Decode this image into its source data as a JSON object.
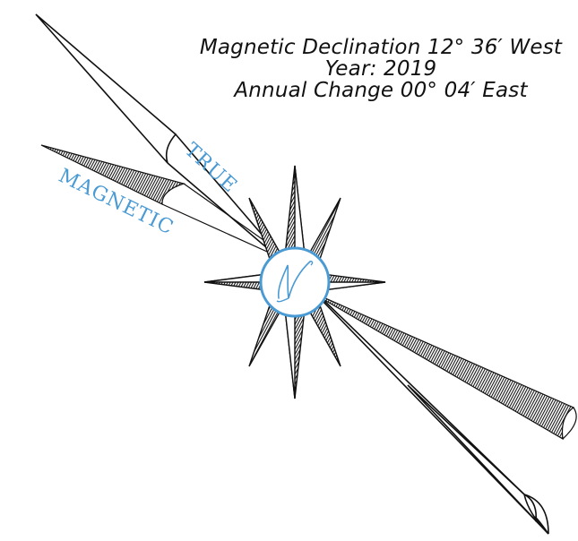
{
  "info": {
    "line1": "Magnetic Declination 12° 36′ West",
    "line2": "Year: 2019",
    "line3": "Annual Change 00° 04′ East"
  },
  "labels": {
    "true": "TRUE",
    "magnetic": "MAGNETIC",
    "north": "N"
  },
  "colors": {
    "ink": "#111111",
    "accent": "#4a9ad4"
  }
}
